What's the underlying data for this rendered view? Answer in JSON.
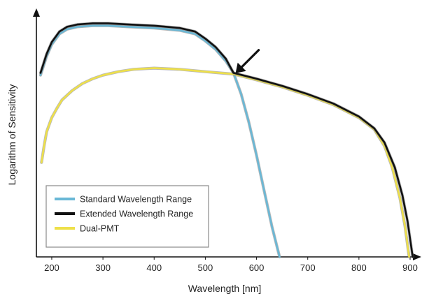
{
  "chart_data": {
    "type": "line",
    "title": "",
    "xlabel": "Wavelength [nm]",
    "ylabel": "Logarithm of Sensitivity",
    "xlim": [
      170,
      915
    ],
    "ylim": [
      0,
      100
    ],
    "x_ticks": [
      200,
      300,
      400,
      500,
      600,
      700,
      800,
      900
    ],
    "y_ticks_shown": false,
    "grid": false,
    "legend_position": "bottom-left",
    "annotation": {
      "type": "arrow",
      "points_to": {
        "x": 555,
        "y": 77
      }
    },
    "series": [
      {
        "name": "Standard Wavelength Range",
        "color": "#6ab8d6",
        "x": [
          178,
          190,
          200,
          215,
          230,
          250,
          280,
          310,
          350,
          400,
          450,
          480,
          500,
          520,
          540,
          555,
          570,
          585,
          600,
          615,
          630,
          645
        ],
        "y": [
          77,
          85,
          90,
          94.5,
          96.5,
          97.5,
          98,
          98,
          97.5,
          97,
          96,
          94.5,
          91.5,
          88,
          83,
          78,
          69,
          57,
          43,
          28,
          13,
          0
        ]
      },
      {
        "name": "Extended Wavelength Range",
        "color": "#111111",
        "x": [
          178,
          190,
          200,
          215,
          230,
          250,
          280,
          310,
          350,
          400,
          450,
          480,
          500,
          520,
          540,
          555,
          600,
          650,
          700,
          750,
          800,
          830,
          850,
          870,
          885,
          895,
          905
        ],
        "y": [
          78,
          86,
          91,
          95.5,
          97.5,
          98.5,
          99,
          99,
          98.5,
          98,
          97,
          95.5,
          92.5,
          89,
          84,
          78,
          75.5,
          72.5,
          69,
          65,
          59.5,
          54.5,
          48.5,
          38,
          26,
          15,
          0
        ]
      },
      {
        "name": "Dual-PMT",
        "color": "#eee04a",
        "x": [
          180,
          185,
          190,
          200,
          210,
          220,
          240,
          260,
          280,
          300,
          330,
          360,
          400,
          450,
          500,
          555,
          600,
          650,
          700,
          750,
          800,
          830,
          850,
          865,
          880,
          890,
          898
        ],
        "y": [
          40,
          47,
          53,
          59,
          63,
          66.5,
          70.5,
          73.5,
          75.5,
          77,
          78.5,
          79.5,
          80,
          79.5,
          78.5,
          77.5,
          75,
          72,
          68.5,
          64.5,
          59,
          54,
          47,
          38,
          25,
          13,
          0
        ]
      }
    ]
  }
}
